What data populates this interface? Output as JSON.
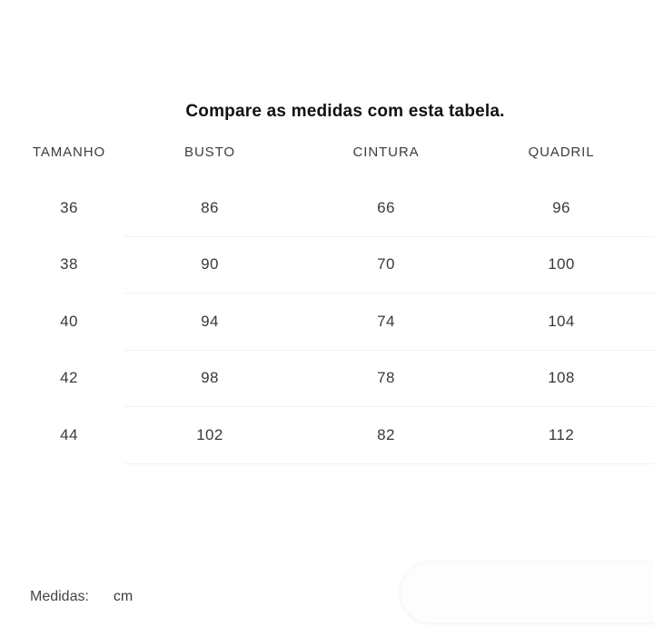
{
  "title": "Compare as medidas com esta tabela.",
  "table": {
    "headers": [
      "TAMANHO",
      "BUSTO",
      "CINTURA",
      "QUADRIL"
    ],
    "rows": [
      [
        "36",
        "86",
        "66",
        "96"
      ],
      [
        "38",
        "90",
        "70",
        "100"
      ],
      [
        "40",
        "94",
        "74",
        "104"
      ],
      [
        "42",
        "98",
        "78",
        "108"
      ],
      [
        "44",
        "102",
        "82",
        "112"
      ]
    ]
  },
  "footer": {
    "measures_label": "Medidas:",
    "unit_value": "cm"
  },
  "colors": {
    "title_text": "#111111",
    "header_text": "#3d3d3d",
    "cell_text": "#3a3a3a",
    "divider": "#f1f1f1",
    "background": "#ffffff",
    "pill_background": "#fdfdfd"
  }
}
